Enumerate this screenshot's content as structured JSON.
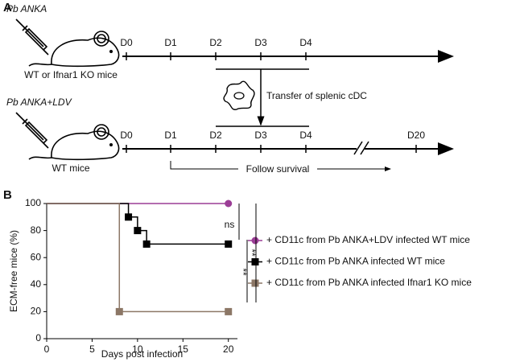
{
  "panel_a": {
    "label": "A",
    "top": {
      "strain": "Pb ANKA",
      "mice": "WT or Ifnar1 KO mice",
      "days": [
        "D0",
        "D1",
        "D2",
        "D3",
        "D4"
      ]
    },
    "transfer": "Transfer of splenic cDC",
    "bottom": {
      "strain": "Pb ANKA+LDV",
      "mice": "WT mice",
      "days": [
        "D0",
        "D1",
        "D2",
        "D3",
        "D4",
        "D20"
      ]
    },
    "follow": "Follow survival"
  },
  "chart_data": {
    "type": "step",
    "panel_label": "B",
    "xlabel": "Days post infection",
    "ylabel": "ECM-free mice (%)",
    "xlim": [
      0,
      21
    ],
    "xticks": [
      0,
      5,
      10,
      15,
      20
    ],
    "ylim": [
      0,
      100
    ],
    "yticks": [
      0,
      20,
      40,
      60,
      80,
      100
    ],
    "series": [
      {
        "name": "+ CD11c from Pb ANKA+LDV infected WT mice",
        "color": "#9b3d96",
        "marker": "circle",
        "x": [
          0,
          20
        ],
        "values": [
          100,
          100
        ]
      },
      {
        "name": "+ CD11c from Pb ANKA infected WT mice",
        "color": "#000000",
        "marker": "square",
        "x": [
          0,
          9,
          10,
          11,
          20
        ],
        "values": [
          100,
          90,
          80,
          70,
          70
        ]
      },
      {
        "name": "+ CD11c from Pb ANKA infected Ifnar1 KO mice",
        "color": "#8c7766",
        "marker": "square",
        "x": [
          0,
          8,
          20
        ],
        "values": [
          100,
          20,
          20
        ]
      }
    ],
    "annotations": [
      "ns",
      "**",
      "**"
    ]
  }
}
